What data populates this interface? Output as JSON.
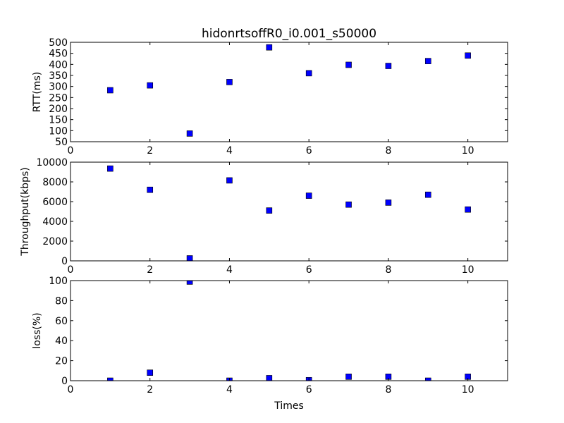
{
  "chart_data": [
    {
      "type": "scatter",
      "title": "hidonrtsoffR0_i0.001_s50000",
      "xlabel": "",
      "ylabel": "RTT(ms)",
      "xlim": [
        0,
        11
      ],
      "ylim": [
        50,
        500
      ],
      "xticks": [
        0,
        2,
        4,
        6,
        8,
        10
      ],
      "yticks": [
        50,
        100,
        150,
        200,
        250,
        300,
        350,
        400,
        450,
        500
      ],
      "marker": "square",
      "color": "#0000ff",
      "x": [
        1,
        2,
        3,
        4,
        5,
        6,
        7,
        8,
        9,
        10
      ],
      "y": [
        283,
        305,
        87,
        320,
        477,
        360,
        398,
        393,
        415,
        440
      ]
    },
    {
      "type": "scatter",
      "title": "",
      "xlabel": "",
      "ylabel": "Throughput(kbps)",
      "xlim": [
        0,
        11
      ],
      "ylim": [
        0,
        10000
      ],
      "xticks": [
        0,
        2,
        4,
        6,
        8,
        10
      ],
      "yticks": [
        0,
        2000,
        4000,
        6000,
        8000,
        10000
      ],
      "marker": "square",
      "color": "#0000ff",
      "x": [
        1,
        2,
        3,
        4,
        5,
        6,
        7,
        8,
        9,
        10
      ],
      "y": [
        9350,
        7200,
        250,
        8150,
        5100,
        6600,
        5700,
        5900,
        6700,
        5200
      ]
    },
    {
      "type": "scatter",
      "title": "",
      "xlabel": "Times",
      "ylabel": "loss(%)",
      "xlim": [
        0,
        11
      ],
      "ylim": [
        0,
        100
      ],
      "xticks": [
        0,
        2,
        4,
        6,
        8,
        10
      ],
      "yticks": [
        0,
        20,
        40,
        60,
        80,
        100
      ],
      "marker": "square",
      "color": "#0000ff",
      "x": [
        1,
        2,
        3,
        4,
        5,
        6,
        7,
        8,
        9,
        10
      ],
      "y": [
        0,
        8,
        99,
        0,
        2.5,
        0.5,
        4,
        4,
        0,
        4
      ]
    }
  ]
}
